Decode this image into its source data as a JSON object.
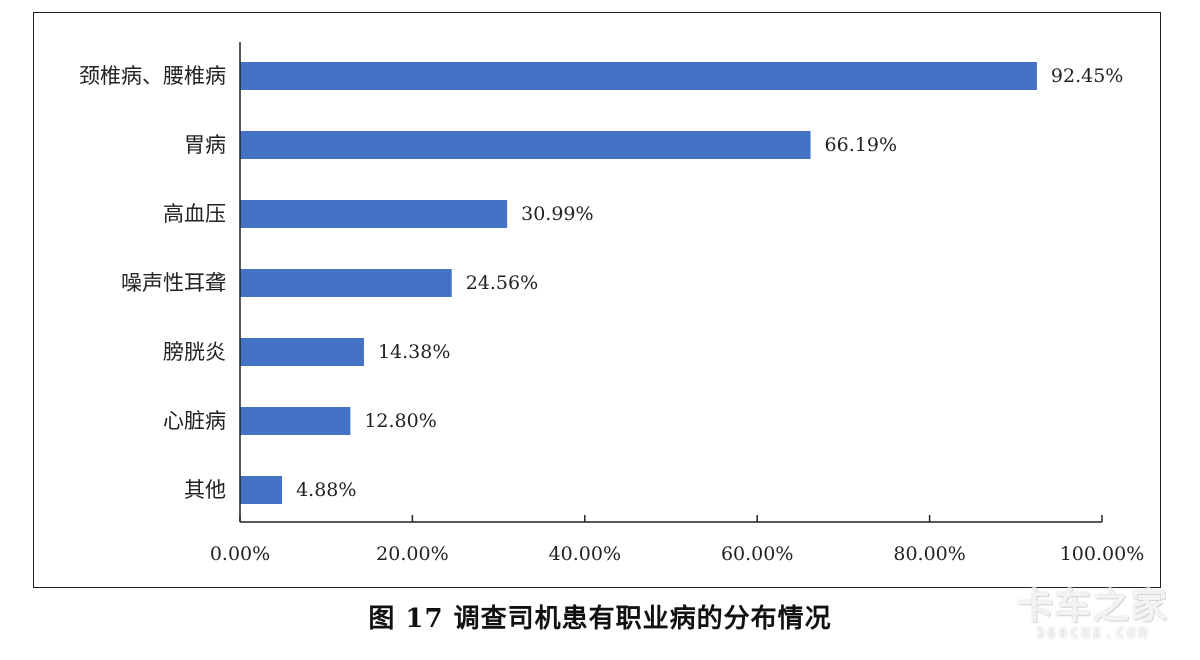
{
  "caption": "图 17  调查司机患有职业病的分布情况",
  "watermark": {
    "main": "卡车之家",
    "sub": "360CHE.COM"
  },
  "colors": {
    "bar": "#4472c4",
    "axis": "#222222"
  },
  "chart_data": {
    "type": "bar",
    "orientation": "horizontal",
    "categories": [
      "颈椎病、腰椎病",
      "胃病",
      "高血压",
      "噪声性耳聋",
      "膀胱炎",
      "心脏病",
      "其他"
    ],
    "values": [
      92.45,
      66.19,
      30.99,
      24.56,
      14.38,
      12.8,
      4.88
    ],
    "value_labels": [
      "92.45%",
      "66.19%",
      "30.99%",
      "24.56%",
      "14.38%",
      "12.80%",
      "4.88%"
    ],
    "xlim": [
      0,
      100
    ],
    "xticks": [
      0,
      20,
      40,
      60,
      80,
      100
    ],
    "xtick_labels": [
      "0.00%",
      "20.00%",
      "40.00%",
      "60.00%",
      "80.00%",
      "100.00%"
    ],
    "grid": false,
    "legend": "none"
  }
}
